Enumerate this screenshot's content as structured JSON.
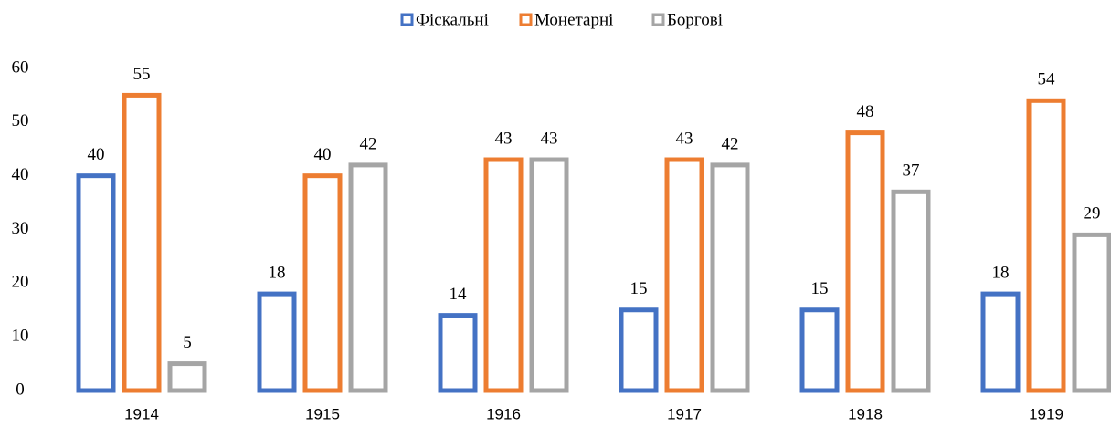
{
  "chart_data": {
    "type": "bar",
    "categories": [
      "1914",
      "1915",
      "1916",
      "1917",
      "1918",
      "1919"
    ],
    "series": [
      {
        "name": "Фіскальні",
        "color": "#4472c4",
        "values": [
          40,
          18,
          14,
          15,
          15,
          18
        ]
      },
      {
        "name": "Монетарні",
        "color": "#ed7d31",
        "values": [
          55,
          40,
          43,
          43,
          48,
          54
        ]
      },
      {
        "name": "Боргові",
        "color": "#a5a5a5",
        "values": [
          5,
          42,
          43,
          42,
          37,
          29
        ]
      }
    ],
    "ylim": [
      0,
      60
    ],
    "yticks": [
      0,
      10,
      20,
      30,
      40,
      50,
      60
    ],
    "grid": false,
    "legend": "top"
  }
}
